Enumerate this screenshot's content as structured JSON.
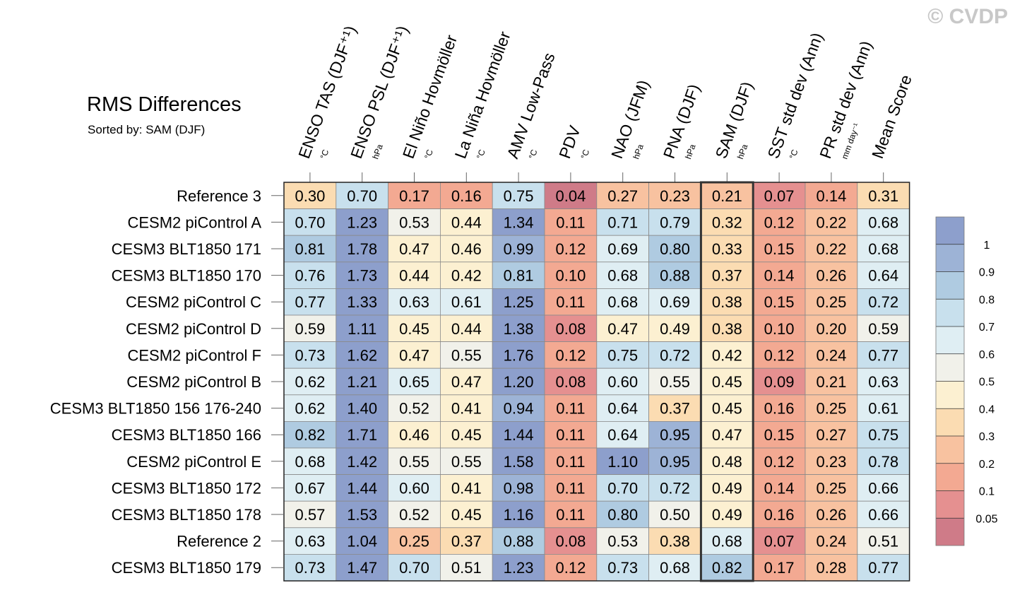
{
  "watermark": "© CVDP",
  "chart_data": {
    "type": "heatmap",
    "title": "RMS Differences",
    "subtitle": "Sorted by: SAM (DJF)",
    "highlight_column": 8,
    "columns": [
      {
        "label": "ENSO TAS (DJF⁺¹)",
        "unit": "°C"
      },
      {
        "label": "ENSO PSL (DJF⁺¹)",
        "unit": "hPa"
      },
      {
        "label": "El Niño Hovmöller",
        "unit": "°C"
      },
      {
        "label": "La Niña Hovmöller",
        "unit": "°C"
      },
      {
        "label": "AMV Low-Pass",
        "unit": "°C"
      },
      {
        "label": "PDV",
        "unit": "°C"
      },
      {
        "label": "NAO (JFM)",
        "unit": "hPa"
      },
      {
        "label": "PNA (DJF)",
        "unit": "hPa"
      },
      {
        "label": "SAM (DJF)",
        "unit": "hPa"
      },
      {
        "label": "SST std dev (Ann)",
        "unit": "°C"
      },
      {
        "label": "PR std dev (Ann)",
        "unit": "mm day⁻¹"
      },
      {
        "label": "Mean Score",
        "unit": ""
      }
    ],
    "rows": [
      {
        "label": "Reference 3",
        "values": [
          0.3,
          0.7,
          0.17,
          0.16,
          0.75,
          0.04,
          0.27,
          0.23,
          0.21,
          0.07,
          0.14,
          0.31
        ]
      },
      {
        "label": "CESM2 piControl A",
        "values": [
          0.7,
          1.23,
          0.53,
          0.44,
          1.34,
          0.11,
          0.71,
          0.79,
          0.32,
          0.12,
          0.22,
          0.68
        ]
      },
      {
        "label": "CESM3 BLT1850 171",
        "values": [
          0.81,
          1.78,
          0.47,
          0.46,
          0.99,
          0.12,
          0.69,
          0.8,
          0.33,
          0.15,
          0.22,
          0.68
        ]
      },
      {
        "label": "CESM3 BLT1850 170",
        "values": [
          0.76,
          1.73,
          0.44,
          0.42,
          0.81,
          0.1,
          0.68,
          0.88,
          0.37,
          0.14,
          0.26,
          0.64
        ]
      },
      {
        "label": "CESM2 piControl C",
        "values": [
          0.77,
          1.33,
          0.63,
          0.61,
          1.25,
          0.11,
          0.68,
          0.69,
          0.38,
          0.15,
          0.25,
          0.72
        ]
      },
      {
        "label": "CESM2 piControl D",
        "values": [
          0.59,
          1.11,
          0.45,
          0.44,
          1.38,
          0.08,
          0.47,
          0.49,
          0.38,
          0.1,
          0.2,
          0.59
        ]
      },
      {
        "label": "CESM2 piControl F",
        "values": [
          0.73,
          1.62,
          0.47,
          0.55,
          1.76,
          0.12,
          0.75,
          0.72,
          0.42,
          0.12,
          0.24,
          0.77
        ]
      },
      {
        "label": "CESM2 piControl B",
        "values": [
          0.62,
          1.21,
          0.65,
          0.47,
          1.2,
          0.08,
          0.6,
          0.55,
          0.45,
          0.09,
          0.21,
          0.63
        ]
      },
      {
        "label": "CESM3 BLT1850 156 176-240",
        "values": [
          0.62,
          1.4,
          0.52,
          0.41,
          0.94,
          0.11,
          0.64,
          0.37,
          0.45,
          0.16,
          0.25,
          0.61
        ]
      },
      {
        "label": "CESM3 BLT1850 166",
        "values": [
          0.82,
          1.71,
          0.46,
          0.45,
          1.44,
          0.11,
          0.64,
          0.95,
          0.47,
          0.15,
          0.27,
          0.75
        ]
      },
      {
        "label": "CESM2 piControl E",
        "values": [
          0.68,
          1.42,
          0.55,
          0.55,
          1.58,
          0.11,
          1.1,
          0.95,
          0.48,
          0.12,
          0.23,
          0.78
        ]
      },
      {
        "label": "CESM3 BLT1850 172",
        "values": [
          0.67,
          1.44,
          0.6,
          0.41,
          0.98,
          0.11,
          0.7,
          0.72,
          0.49,
          0.14,
          0.25,
          0.66
        ]
      },
      {
        "label": "CESM3 BLT1850 178",
        "values": [
          0.57,
          1.53,
          0.52,
          0.45,
          1.16,
          0.11,
          0.8,
          0.5,
          0.49,
          0.16,
          0.26,
          0.66
        ]
      },
      {
        "label": "Reference 2",
        "values": [
          0.63,
          1.04,
          0.25,
          0.37,
          0.88,
          0.08,
          0.53,
          0.38,
          0.68,
          0.07,
          0.24,
          0.51
        ]
      },
      {
        "label": "CESM3 BLT1850 179",
        "values": [
          0.73,
          1.47,
          0.7,
          0.51,
          1.23,
          0.12,
          0.73,
          0.68,
          0.82,
          0.17,
          0.28,
          0.77
        ]
      }
    ],
    "colorbar": {
      "levels": [
        0.05,
        0.1,
        0.2,
        0.3,
        0.4,
        0.5,
        0.6,
        0.7,
        0.8,
        0.9,
        1
      ],
      "tick_labels": [
        "0.05",
        "0.1",
        "0.2",
        "0.3",
        "0.4",
        "0.5",
        "0.6",
        "0.7",
        "0.8",
        "0.9",
        "1"
      ],
      "colors": [
        "#cf7b88",
        "#e59090",
        "#f3a992",
        "#f8c2a0",
        "#fbdcb2",
        "#fcf0d1",
        "#f1f1ea",
        "#dfeef3",
        "#c8e0ed",
        "#afcbe1",
        "#9db3d6",
        "#8d9fcc"
      ]
    }
  }
}
